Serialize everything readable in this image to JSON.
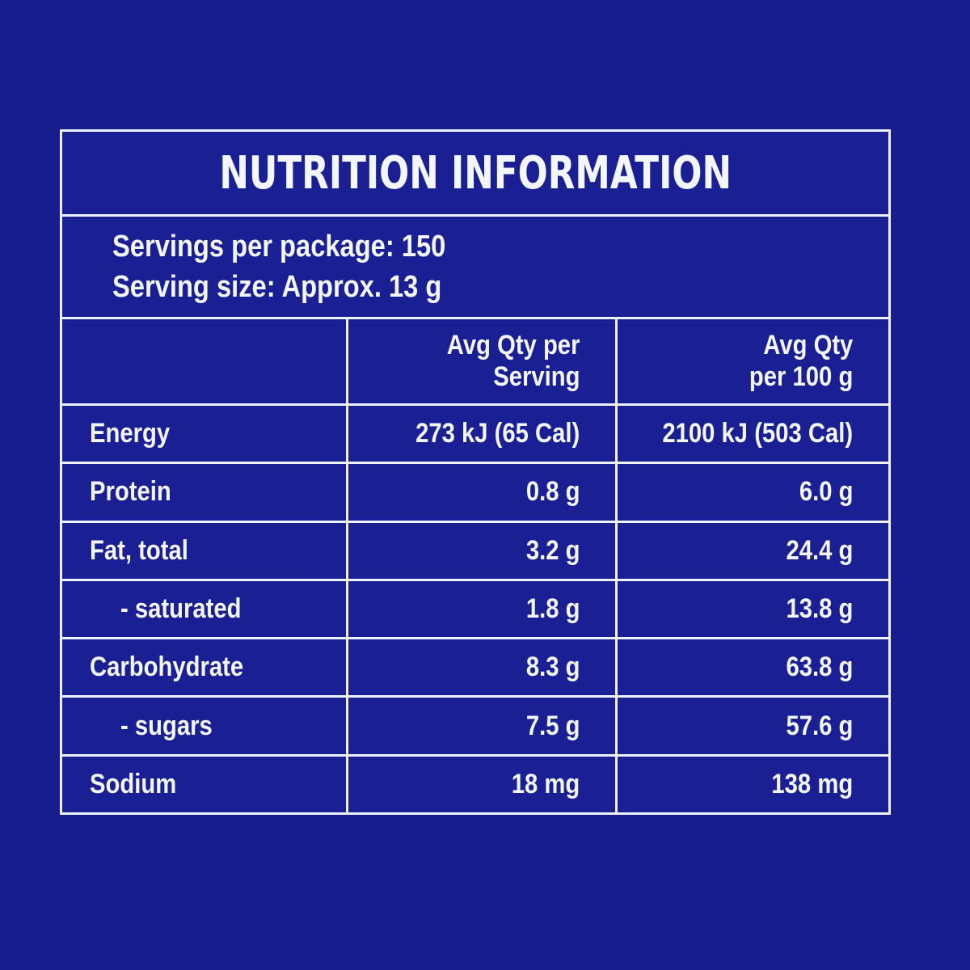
{
  "panel": {
    "title": "NUTRITION INFORMATION",
    "serving_info": [
      "Servings per package: 150",
      "Serving size: Approx. 13 g"
    ],
    "header": {
      "per_serving": [
        "Avg Qty per",
        "Serving"
      ],
      "per_100g": [
        "Avg Qty",
        "per 100 g"
      ]
    },
    "rows": [
      {
        "label": "Energy",
        "per_serving": "273 kJ (65 Cal)",
        "per_100g": "2100 kJ (503 Cal)"
      },
      {
        "label": "Protein",
        "per_serving": "0.8 g",
        "per_100g": "6.0 g"
      },
      {
        "label": "Fat, total",
        "per_serving": "3.2 g",
        "per_100g": "24.4 g"
      },
      {
        "label": "- saturated",
        "per_serving": "1.8 g",
        "per_100g": "13.8 g"
      },
      {
        "label": "Carbohydrate",
        "per_serving": "8.3 g",
        "per_100g": "63.8 g"
      },
      {
        "label": "- sugars",
        "per_serving": "7.5 g",
        "per_100g": "57.6 g"
      },
      {
        "label": "Sodium",
        "per_serving": "18 mg",
        "per_100g": "138 mg"
      }
    ],
    "colors": {
      "page_background": "#171d8c",
      "cell_background": "#1a2094",
      "border": "#eef2fb",
      "text": "#f3f6fd"
    }
  }
}
